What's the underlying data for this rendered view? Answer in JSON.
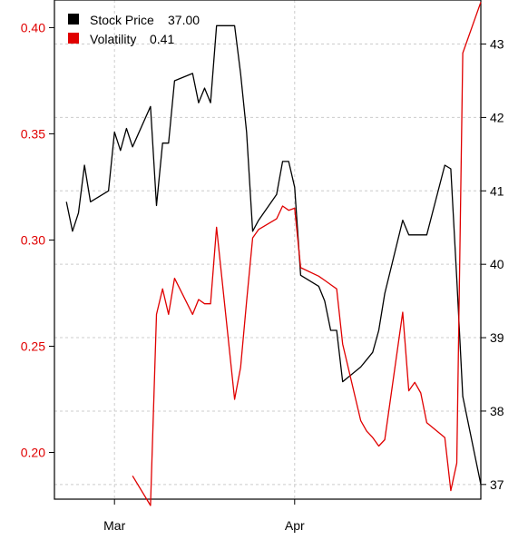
{
  "chart_data": {
    "type": "line",
    "title": "",
    "xlabel": "",
    "ylabel": "",
    "x_ticks": [
      "Mar",
      "Apr"
    ],
    "x_range_days": [
      1,
      72
    ],
    "x_tick_days": [
      11,
      41
    ],
    "left_axis": {
      "range": [
        0.178,
        0.413
      ],
      "ticks": [
        0.2,
        0.25,
        0.3,
        0.35,
        0.4
      ],
      "tick_labels": [
        "0.20",
        "0.25",
        "0.30",
        "0.35",
        "0.40"
      ]
    },
    "right_axis": {
      "range": [
        36.8,
        43.6
      ],
      "ticks": [
        37,
        38,
        39,
        40,
        41,
        42,
        43
      ],
      "tick_labels": [
        "37",
        "38",
        "39",
        "40",
        "41",
        "42",
        "43"
      ]
    },
    "legend_position": "top-left",
    "grid": true,
    "colors": {
      "price": "#000000",
      "volatility": "#e00000",
      "grid": "#cccccc"
    },
    "series": [
      {
        "name": "Stock Price",
        "legend_value": "37.00",
        "axis": "right",
        "color": "#000000",
        "x": [
          3,
          4,
          5,
          6,
          7,
          10,
          11,
          12,
          13,
          14,
          17,
          18,
          19,
          20,
          21,
          24,
          25,
          26,
          27,
          28,
          31,
          32,
          33,
          34,
          35,
          38,
          39,
          40,
          41,
          42,
          45,
          46,
          47,
          48,
          49,
          52,
          53,
          54,
          55,
          56,
          59,
          60,
          61,
          62,
          63,
          66,
          67,
          68,
          69,
          72
        ],
        "y": [
          40.85,
          40.45,
          40.7,
          41.35,
          40.85,
          41.0,
          41.8,
          41.55,
          41.85,
          41.6,
          42.15,
          40.8,
          41.65,
          41.65,
          42.5,
          42.6,
          42.2,
          42.4,
          42.2,
          43.25,
          43.25,
          42.6,
          41.8,
          40.45,
          40.6,
          40.95,
          41.4,
          41.4,
          41.05,
          39.85,
          39.7,
          39.5,
          39.1,
          39.1,
          38.4,
          38.6,
          38.7,
          38.8,
          39.1,
          39.6,
          40.6,
          40.4,
          40.4,
          40.4,
          40.4,
          41.35,
          41.3,
          39.8,
          38.2,
          37.0
        ]
      },
      {
        "name": "Volatility",
        "legend_value": "0.41",
        "axis": "left",
        "color": "#e00000",
        "x": [
          14,
          17,
          18,
          19,
          20,
          21,
          24,
          25,
          26,
          27,
          28,
          31,
          32,
          33,
          34,
          35,
          38,
          39,
          40,
          41,
          42,
          45,
          46,
          47,
          48,
          49,
          52,
          53,
          54,
          55,
          56,
          59,
          60,
          61,
          62,
          63,
          66,
          67,
          68,
          69,
          72
        ],
        "y": [
          0.189,
          0.175,
          0.265,
          0.277,
          0.265,
          0.282,
          0.265,
          0.272,
          0.27,
          0.27,
          0.306,
          0.225,
          0.24,
          0.271,
          0.301,
          0.305,
          0.31,
          0.316,
          0.314,
          0.315,
          0.287,
          0.283,
          0.281,
          0.279,
          0.277,
          0.251,
          0.215,
          0.21,
          0.207,
          0.203,
          0.206,
          0.266,
          0.229,
          0.233,
          0.228,
          0.214,
          0.207,
          0.182,
          0.195,
          0.388,
          0.412
        ]
      }
    ]
  }
}
